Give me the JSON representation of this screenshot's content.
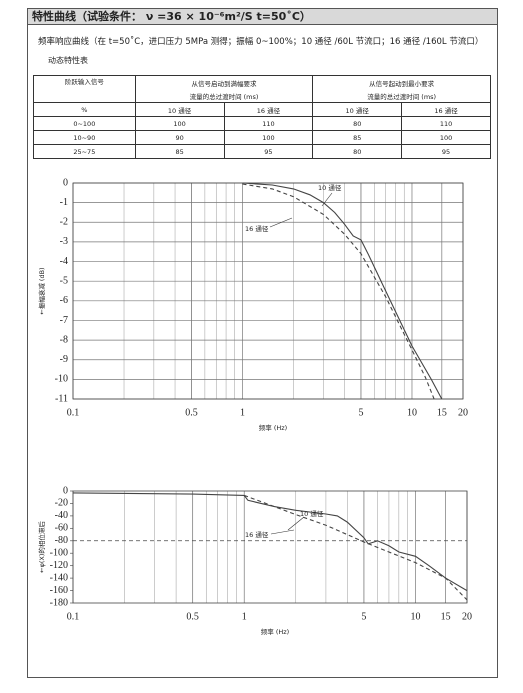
{
  "header": {
    "title": "特性曲线（试验条件： ν =36 × 10⁻⁶m²/S  t=50˚C）"
  },
  "subtitle": "频率响应曲线（在 t=50˚C，进口压力 5MPa 测得；振幅 0~100%；10 通径 /60L 节流口；16 通径 /160L 节流口）",
  "table": {
    "title": "动态特性表",
    "header": [
      [
        "阶跃输入信号",
        "从信号启动到满幅要求",
        "从信号起动到最小要求"
      ],
      [
        "流量的总过渡时间 (ms)",
        "流量的总过渡时间 (ms)"
      ],
      [
        "%",
        "10 通径",
        "16 通径",
        "10 通径",
        "16 通径"
      ]
    ],
    "rows": [
      [
        "0~100",
        100,
        110,
        80,
        110
      ],
      [
        "10~90",
        90,
        100,
        85,
        100
      ],
      [
        "25~75",
        85,
        95,
        80,
        95
      ]
    ]
  },
  "chart_data": [
    {
      "type": "line",
      "x_label": "频率 (Hz)",
      "y_label": "←振幅衰减 (dB)",
      "log_x": true,
      "grid": [
        "x",
        "y"
      ],
      "xlim": [
        0.1,
        20
      ],
      "xticks": [
        0.1,
        0.5,
        1,
        5,
        10,
        15,
        20
      ],
      "ylim": [
        -11,
        0
      ],
      "yticks": [
        0,
        -1,
        -2,
        -3,
        -4,
        -5,
        -6,
        -7,
        -8,
        -9,
        -10,
        -11
      ],
      "series": [
        {
          "name": "10 通径",
          "color": "#444444",
          "line_style": "solid",
          "x": [
            1,
            1.5,
            2,
            2.5,
            3,
            3.5,
            4,
            4.5,
            5,
            5.5,
            7,
            10,
            13,
            15
          ],
          "values": [
            0,
            -0.1,
            -0.3,
            -0.6,
            -1.0,
            -1.5,
            -2.1,
            -2.7,
            -2.9,
            -3.6,
            -5.5,
            -8.3,
            -10.0,
            -11
          ]
        },
        {
          "name": "16 通径",
          "color": "#444444",
          "line_style": "dashed",
          "x": [
            1,
            1.5,
            2,
            3,
            4,
            5,
            7,
            10,
            12,
            13.5
          ],
          "values": [
            -0.05,
            -0.3,
            -0.7,
            -1.6,
            -2.6,
            -3.6,
            -5.8,
            -8.5,
            -9.9,
            -11
          ]
        }
      ]
    },
    {
      "type": "line",
      "x_label": "频率 (Hz)",
      "y_label": "←φ(X)的相位滞后",
      "log_x": true,
      "grid": [
        "x"
      ],
      "reference_line": -80,
      "xlim": [
        0.1,
        20
      ],
      "xticks": [
        0.1,
        0.5,
        1,
        5,
        10,
        15,
        20
      ],
      "ylim": [
        -180,
        0
      ],
      "yticks": [
        0,
        -20,
        -40,
        -60,
        -80,
        -100,
        -120,
        -140,
        -160,
        -180
      ],
      "series": [
        {
          "name": "10 通径",
          "color": "#444444",
          "line_style": "solid",
          "x": [
            0.1,
            0.5,
            1,
            1.05,
            1.5,
            2,
            3,
            3.5,
            4,
            5,
            5.3,
            6,
            7,
            8,
            10,
            12,
            15,
            20
          ],
          "values": [
            -3,
            -5,
            -7,
            -15,
            -25,
            -31,
            -37,
            -40,
            -50,
            -75,
            -85,
            -80,
            -88,
            -98,
            -105,
            -120,
            -140,
            -160
          ]
        },
        {
          "name": "16 通径",
          "color": "#444444",
          "line_style": "dashed",
          "x": [
            1,
            1.5,
            2,
            3,
            4,
            5,
            7,
            10,
            15,
            20
          ],
          "values": [
            -7,
            -25,
            -38,
            -55,
            -70,
            -82,
            -98,
            -115,
            -140,
            -175
          ]
        }
      ]
    }
  ]
}
